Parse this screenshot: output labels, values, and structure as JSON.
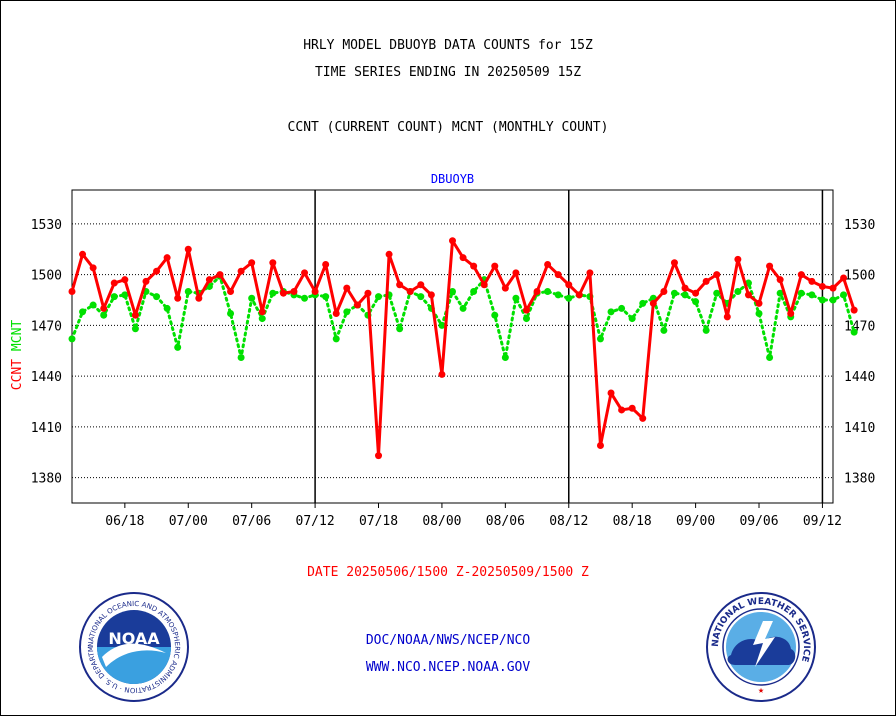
{
  "header": {
    "line1": "HRLY MODEL DBUOYB DATA COUNTS for 15Z",
    "line2": "TIME SERIES ENDING IN 20250509 15Z",
    "line3": "CCNT (CURRENT COUNT) MCNT (MONTHLY COUNT)"
  },
  "footer": {
    "date_range": "DATE 20250506/1500 Z-20250509/1500 Z",
    "org": "DOC/NOAA/NWS/NCEP/NCO",
    "url": "WWW.NCO.NCEP.NOAA.GOV"
  },
  "logos": {
    "noaa_text": "NOAA",
    "noaa_ring_text": "NATIONAL OCEANIC AND ATMOSPHERIC ADMINISTRATION · U.S. DEPARTMENT OF COMMERCE",
    "nws_ring_text": "NATIONAL WEATHER SERVICE"
  },
  "chart_data": {
    "type": "line",
    "title": "DBUOYB",
    "xlabel": "",
    "ylabel_left": [
      "CCNT",
      "MCNT"
    ],
    "ylim": [
      1365,
      1550
    ],
    "yticks": [
      1380,
      1410,
      1440,
      1470,
      1500,
      1530
    ],
    "x_tick_labels": [
      "06/18",
      "07/00",
      "07/06",
      "07/12",
      "07/18",
      "08/00",
      "08/06",
      "08/12",
      "08/18",
      "09/00",
      "09/06",
      "09/12"
    ],
    "x_tick_positions": [
      5,
      11,
      17,
      23,
      29,
      35,
      41,
      47,
      53,
      59,
      65,
      71
    ],
    "xlim": [
      0,
      72
    ],
    "day_boundaries": [
      23,
      47,
      71
    ],
    "grid": true,
    "colors": {
      "ccnt": "#ff0000",
      "mcnt": "#00e000",
      "grid": "#000000",
      "title": "#0000ff",
      "date": "#ff0000",
      "footer": "#0000cc"
    },
    "series": [
      {
        "name": "CCNT",
        "style": "solid",
        "values": [
          1490,
          1512,
          1504,
          1480,
          1495,
          1497,
          1476,
          1496,
          1502,
          1510,
          1486,
          1515,
          1486,
          1497,
          1500,
          1490,
          1502,
          1507,
          1478,
          1507,
          1489,
          1490,
          1501,
          1490,
          1506,
          1477,
          1492,
          1482,
          1489,
          1393,
          1512,
          1494,
          1490,
          1494,
          1488,
          1441,
          1520,
          1510,
          1505,
          1494,
          1505,
          1492,
          1501,
          1479,
          1490,
          1506,
          1500,
          1494,
          1488,
          1501,
          1399,
          1430,
          1420,
          1421,
          1415,
          1483,
          1490,
          1507,
          1492,
          1489,
          1496,
          1500,
          1475,
          1509,
          1488,
          1483,
          1505,
          1497,
          1477,
          1500,
          1496,
          1493,
          1492,
          1498,
          1479
        ]
      },
      {
        "name": "MCNT",
        "style": "dotted",
        "values": [
          1462,
          1478,
          1482,
          1476,
          1487,
          1488,
          1468,
          1490,
          1487,
          1480,
          1457,
          1490,
          1489,
          1493,
          1499,
          1477,
          1451,
          1486,
          1474,
          1489,
          1490,
          1488,
          1486,
          1488,
          1487,
          1462,
          1478,
          1482,
          1476,
          1487,
          1488,
          1468,
          1490,
          1487,
          1480,
          1470,
          1490,
          1480,
          1490,
          1497,
          1476,
          1451,
          1486,
          1474,
          1489,
          1490,
          1488,
          1486,
          1488,
          1487,
          1462,
          1478,
          1480,
          1474,
          1483,
          1486,
          1467,
          1489,
          1488,
          1484,
          1467,
          1489,
          1483,
          1490,
          1495,
          1477,
          1451,
          1489,
          1475,
          1489,
          1488,
          1485,
          1485,
          1488,
          1466
        ]
      }
    ]
  }
}
